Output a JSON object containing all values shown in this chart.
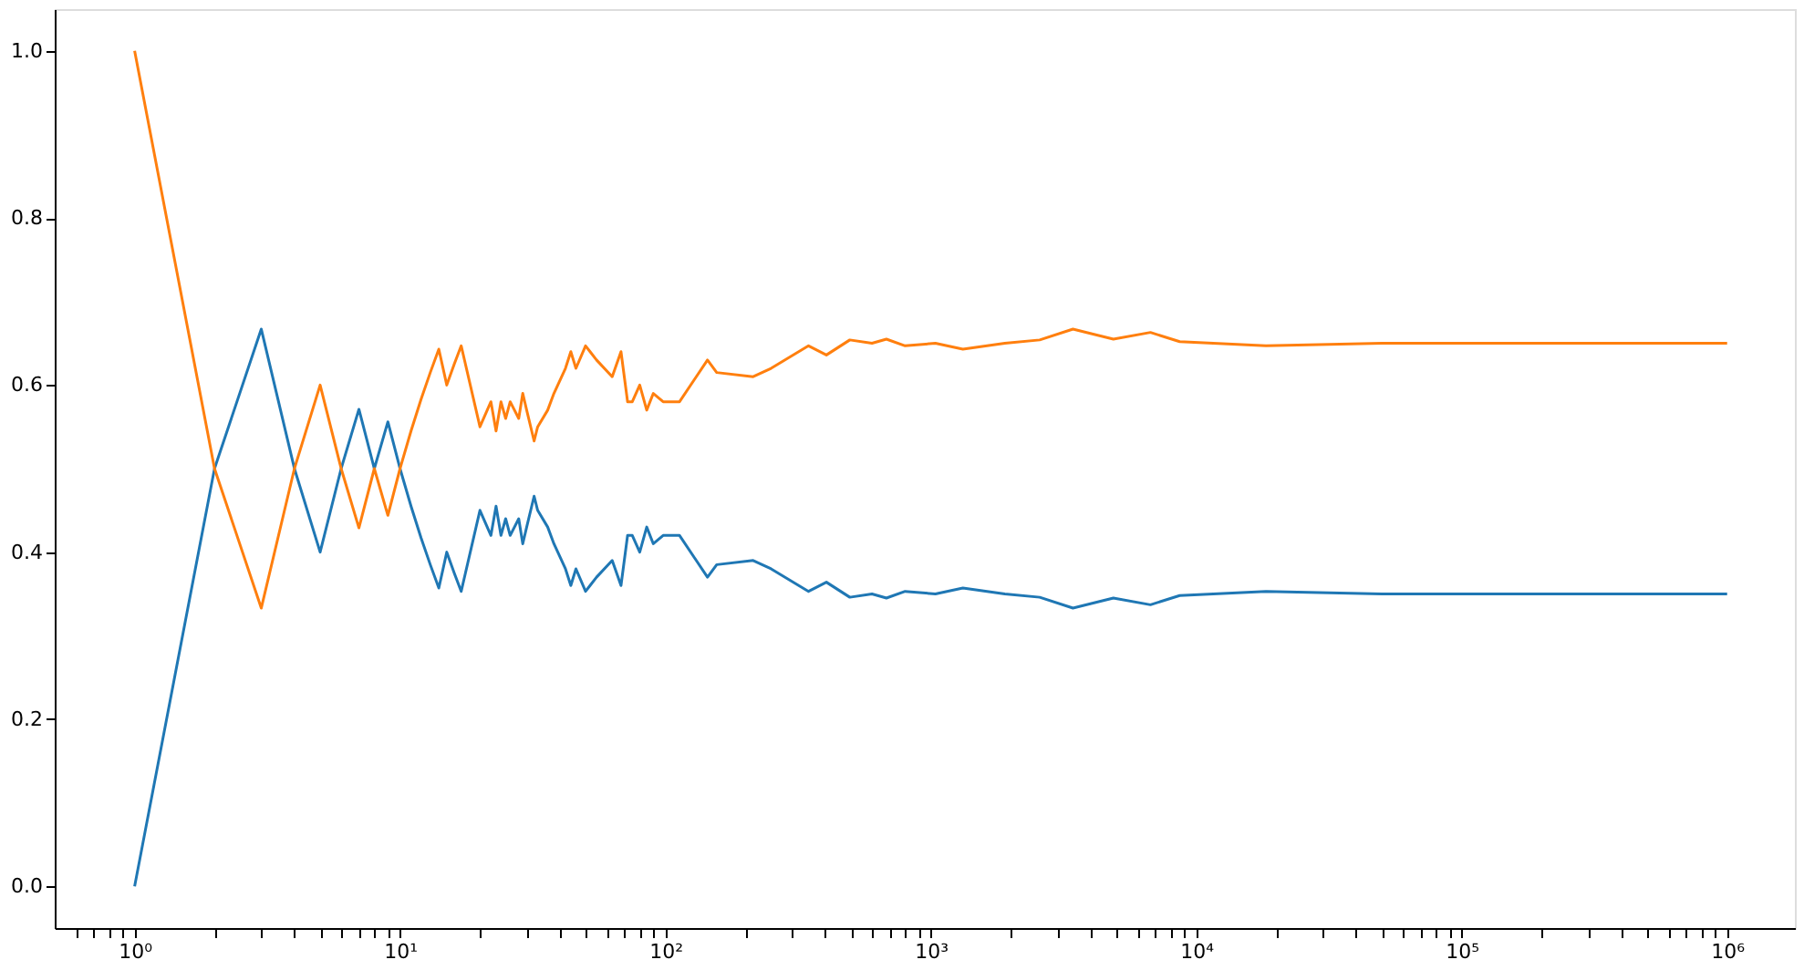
{
  "chart_data": {
    "type": "line",
    "x": [
      1,
      2,
      3,
      4,
      5,
      6,
      7,
      8,
      9,
      10,
      11,
      12,
      13,
      14,
      15,
      16,
      17,
      20,
      22,
      23,
      24,
      25,
      26,
      28,
      29,
      30,
      32,
      33,
      36,
      38,
      42,
      44,
      46,
      50,
      52,
      55,
      63,
      68,
      72,
      75,
      80,
      85,
      90,
      98,
      113,
      144,
      156,
      214,
      250,
      346,
      404,
      495,
      600,
      680,
      800,
      1040,
      1320,
      1900,
      2570,
      3430,
      4870,
      6720,
      8660,
      18300,
      50000,
      200000,
      1000000
    ],
    "series": [
      {
        "color": "#1f77b4",
        "values": [
          0,
          0.5,
          0.667,
          0.5,
          0.4,
          0.5,
          0.571,
          0.5,
          0.556,
          0.5,
          0.455,
          0.417,
          0.385,
          0.357,
          0.4,
          0.375,
          0.353,
          0.45,
          0.42,
          0.455,
          0.42,
          0.44,
          0.42,
          0.44,
          0.41,
          0.43,
          0.467,
          0.45,
          0.43,
          0.41,
          0.38,
          0.36,
          0.38,
          0.353,
          0.36,
          0.37,
          0.39,
          0.36,
          0.42,
          0.42,
          0.4,
          0.43,
          0.41,
          0.42,
          0.42,
          0.37,
          0.385,
          0.39,
          0.38,
          0.353,
          0.364,
          0.346,
          0.35,
          0.345,
          0.353,
          0.35,
          0.357,
          0.35,
          0.346,
          0.333,
          0.345,
          0.337,
          0.348,
          0.353,
          0.35,
          0.35,
          0.35
        ]
      },
      {
        "color": "#ff7f0e",
        "values": [
          1,
          0.5,
          0.333,
          0.5,
          0.6,
          0.5,
          0.429,
          0.5,
          0.444,
          0.5,
          0.545,
          0.583,
          0.615,
          0.643,
          0.6,
          0.625,
          0.647,
          0.55,
          0.58,
          0.545,
          0.58,
          0.56,
          0.58,
          0.56,
          0.59,
          0.57,
          0.533,
          0.55,
          0.57,
          0.59,
          0.62,
          0.64,
          0.62,
          0.647,
          0.64,
          0.63,
          0.61,
          0.64,
          0.58,
          0.58,
          0.6,
          0.57,
          0.59,
          0.58,
          0.58,
          0.63,
          0.615,
          0.61,
          0.62,
          0.647,
          0.636,
          0.654,
          0.65,
          0.655,
          0.647,
          0.65,
          0.643,
          0.65,
          0.654,
          0.667,
          0.655,
          0.663,
          0.652,
          0.647,
          0.65,
          0.65,
          0.65
        ]
      }
    ],
    "log": "x",
    "xlim": [
      0.5,
      1800000
    ],
    "xticks": [
      {
        "value": 0.6,
        "label": null
      },
      {
        "value": 0.7,
        "label": null
      },
      {
        "value": 0.8,
        "label": null
      },
      {
        "value": 0.9,
        "label": null
      },
      {
        "value": 1,
        "label": "10⁰"
      },
      {
        "value": 2,
        "label": null
      },
      {
        "value": 3,
        "label": null
      },
      {
        "value": 4,
        "label": null
      },
      {
        "value": 5,
        "label": null
      },
      {
        "value": 6,
        "label": null
      },
      {
        "value": 7,
        "label": null
      },
      {
        "value": 8,
        "label": null
      },
      {
        "value": 9,
        "label": null
      },
      {
        "value": 10,
        "label": "10¹"
      },
      {
        "value": 20,
        "label": null
      },
      {
        "value": 30,
        "label": null
      },
      {
        "value": 40,
        "label": null
      },
      {
        "value": 50,
        "label": null
      },
      {
        "value": 60,
        "label": null
      },
      {
        "value": 70,
        "label": null
      },
      {
        "value": 80,
        "label": null
      },
      {
        "value": 90,
        "label": null
      },
      {
        "value": 100,
        "label": "10²"
      },
      {
        "value": 200,
        "label": null
      },
      {
        "value": 300,
        "label": null
      },
      {
        "value": 400,
        "label": null
      },
      {
        "value": 500,
        "label": null
      },
      {
        "value": 600,
        "label": null
      },
      {
        "value": 700,
        "label": null
      },
      {
        "value": 800,
        "label": null
      },
      {
        "value": 900,
        "label": null
      },
      {
        "value": 1000,
        "label": "10³"
      },
      {
        "value": 2000,
        "label": null
      },
      {
        "value": 3000,
        "label": null
      },
      {
        "value": 4000,
        "label": null
      },
      {
        "value": 5000,
        "label": null
      },
      {
        "value": 6000,
        "label": null
      },
      {
        "value": 7000,
        "label": null
      },
      {
        "value": 8000,
        "label": null
      },
      {
        "value": 9000,
        "label": null
      },
      {
        "value": 10000,
        "label": "10⁴"
      },
      {
        "value": 20000,
        "label": null
      },
      {
        "value": 30000,
        "label": null
      },
      {
        "value": 40000,
        "label": null
      },
      {
        "value": 50000,
        "label": null
      },
      {
        "value": 60000,
        "label": null
      },
      {
        "value": 70000,
        "label": null
      },
      {
        "value": 80000,
        "label": null
      },
      {
        "value": 90000,
        "label": null
      },
      {
        "value": 100000,
        "label": "10⁵"
      },
      {
        "value": 200000,
        "label": null
      },
      {
        "value": 300000,
        "label": null
      },
      {
        "value": 400000,
        "label": null
      },
      {
        "value": 500000,
        "label": null
      },
      {
        "value": 600000,
        "label": null
      },
      {
        "value": 700000,
        "label": null
      },
      {
        "value": 800000,
        "label": null
      },
      {
        "value": 900000,
        "label": null
      },
      {
        "value": 1000000,
        "label": "10⁶"
      }
    ],
    "ylim": [
      -0.05,
      1.05
    ],
    "yticks": [
      {
        "value": 0,
        "label": "0.0"
      },
      0.2,
      0.4,
      0.6,
      0.8,
      {
        "value": 1,
        "label": "1.0"
      }
    ],
    "grid": false,
    "legend": false
  }
}
